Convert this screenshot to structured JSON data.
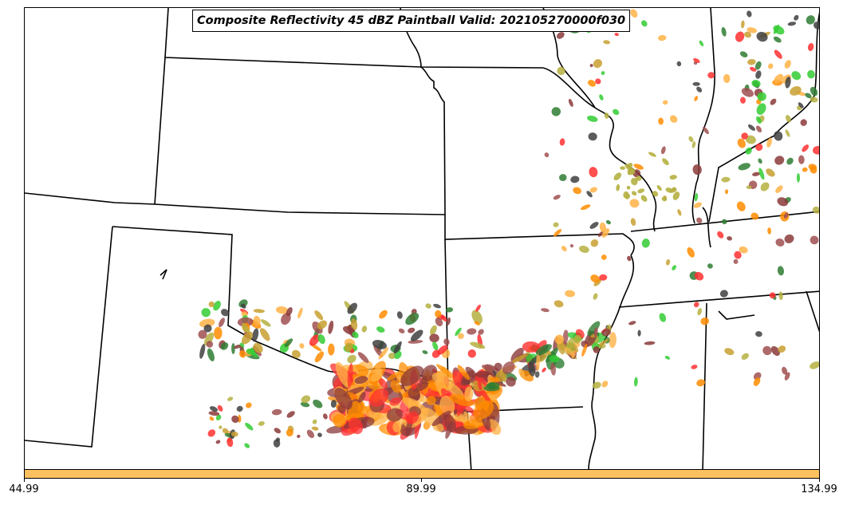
{
  "title": "Composite Reflectivity 45 dBZ Paintball Valid: 202105270000f030",
  "colorbar": {
    "color": "#ffc060",
    "tick_labels": [
      "44.99",
      "89.99",
      "134.99"
    ]
  },
  "member_colors": [
    "#8b3a3a",
    "#ff3030",
    "#ff8c00",
    "#ffb347",
    "#b5b040",
    "#2e7d32",
    "#32cd32",
    "#404040",
    "#a05050",
    "#c8a030"
  ],
  "map": {
    "features": [
      "state-boundaries",
      "paintball-reflectivity-blobs"
    ]
  }
}
